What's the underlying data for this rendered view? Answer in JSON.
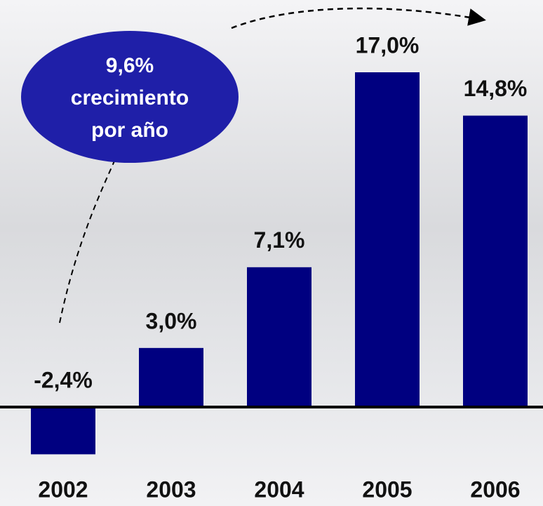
{
  "chart_data": {
    "type": "bar",
    "categories": [
      "2002",
      "2003",
      "2004",
      "2005",
      "2006"
    ],
    "values": [
      -2.4,
      3.0,
      7.1,
      17.0,
      14.8
    ],
    "value_labels": [
      "-2,4%",
      "3,0%",
      "7,1%",
      "17,0%",
      "14,8%"
    ],
    "color": "#000080",
    "annotation": [
      "9,6%",
      "crecimiento",
      "por año"
    ]
  }
}
